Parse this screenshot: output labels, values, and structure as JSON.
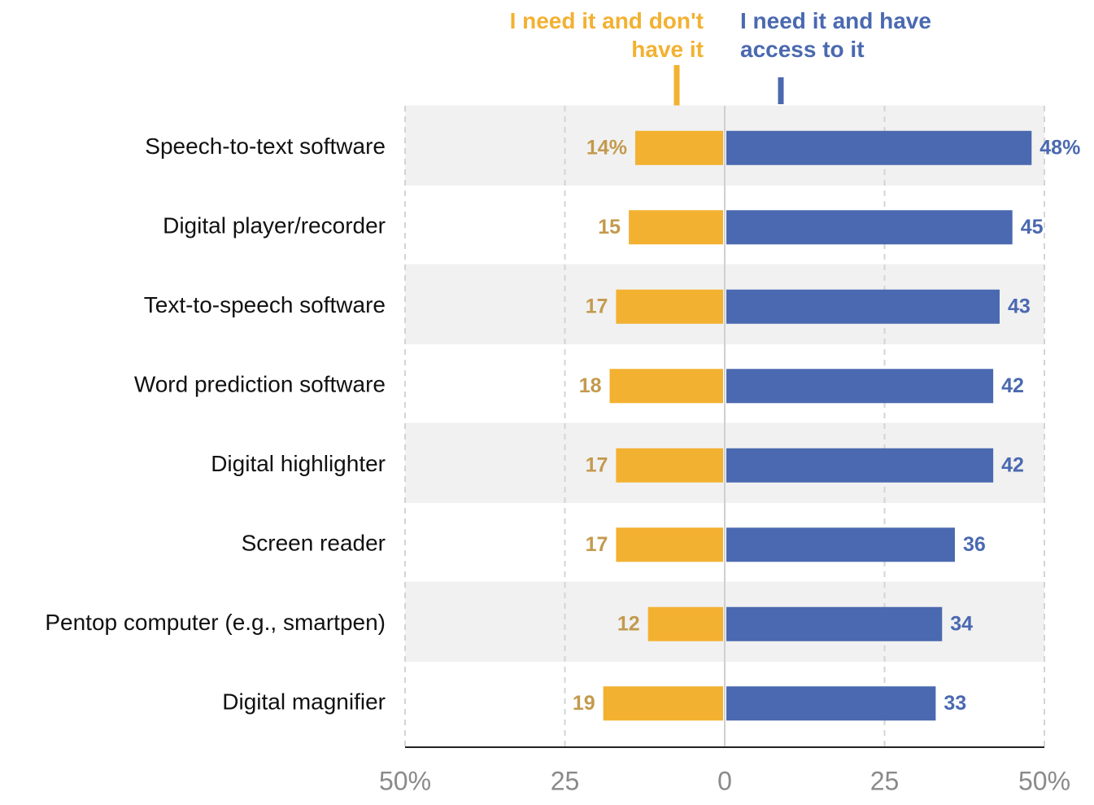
{
  "chart_data": {
    "type": "diverging",
    "categories": [
      "Speech-to-text software",
      "Digital player/recorder",
      "Text-to-speech software",
      "Word prediction software",
      "Digital highlighter",
      "Screen reader",
      "Pentop computer (e.g., smartpen)",
      "Digital magnifier"
    ],
    "series": [
      {
        "name": "I need it and don't have it",
        "color": "#f3b131",
        "label_color": "#c39a4e",
        "values": [
          14,
          15,
          17,
          18,
          17,
          17,
          12,
          19
        ],
        "value_labels": [
          "14%",
          "15",
          "17",
          "18",
          "17",
          "17",
          "12",
          "19"
        ]
      },
      {
        "name": "I need it and have access to it",
        "color": "#4a69b0",
        "label_color": "#4a69b0",
        "values": [
          48,
          45,
          43,
          42,
          42,
          36,
          34,
          33
        ],
        "value_labels": [
          "48%",
          "45",
          "43",
          "42",
          "42",
          "36",
          "34",
          "33"
        ]
      }
    ],
    "xlim": [
      -50,
      50
    ],
    "xticks": [
      {
        "value": -50,
        "label": "50%"
      },
      {
        "value": -25,
        "label": "25"
      },
      0,
      25,
      {
        "value": 50,
        "label": "50%"
      }
    ],
    "grid": true
  }
}
